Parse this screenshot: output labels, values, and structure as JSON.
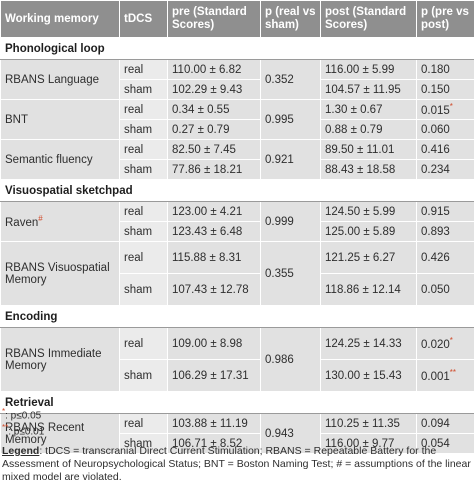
{
  "header": [
    "Working memory",
    "tDCS",
    "pre (Standard Scores)",
    "p (real vs sham)",
    "post (Standard Scores)",
    "p (pre vs post)"
  ],
  "sections": [
    {
      "title": "Phonological loop",
      "measures": [
        {
          "name": "RBANS Language",
          "mark": "",
          "p_real_sham": "0.352",
          "rows": [
            {
              "tdcs": "real",
              "pre": "110.00 ± 6.82",
              "post": "116.00 ± 5.99",
              "p_pre_post": "0.180",
              "p_mark": ""
            },
            {
              "tdcs": "sham",
              "pre": "102.29 ± 9.43",
              "post": "104.57 ± 11.95",
              "p_pre_post": "0.150",
              "p_mark": ""
            }
          ]
        },
        {
          "name": "BNT",
          "mark": "",
          "p_real_sham": "0.995",
          "rows": [
            {
              "tdcs": "real",
              "pre": "0.34 ± 0.55",
              "post": "1.30 ± 0.67",
              "p_pre_post": "0.015",
              "p_mark": "*"
            },
            {
              "tdcs": "sham",
              "pre": "0.27 ± 0.79",
              "post": "0.88 ± 0.79",
              "p_pre_post": "0.060",
              "p_mark": ""
            }
          ]
        },
        {
          "name": "Semantic fluency",
          "mark": "",
          "p_real_sham": "0.921",
          "rows": [
            {
              "tdcs": "real",
              "pre": "82.50 ± 7.45",
              "post": "89.50 ± 11.01",
              "p_pre_post": "0.416",
              "p_mark": ""
            },
            {
              "tdcs": "sham",
              "pre": "77.86 ± 18.21",
              "post": "88.43 ± 18.58",
              "p_pre_post": "0.234",
              "p_mark": ""
            }
          ]
        }
      ]
    },
    {
      "title": "Visuospatial sketchpad",
      "measures": [
        {
          "name": "Raven",
          "mark": "#",
          "p_real_sham": "0.999",
          "rows": [
            {
              "tdcs": "real",
              "pre": "123.00 ± 4.21",
              "post": "124.50 ± 5.99",
              "p_pre_post": "0.915",
              "p_mark": ""
            },
            {
              "tdcs": "sham",
              "pre": "123.43 ± 6.48",
              "post": "125.00 ± 5.89",
              "p_pre_post": "0.893",
              "p_mark": ""
            }
          ]
        },
        {
          "name": "RBANS Visuospatial Memory",
          "mark": "",
          "p_real_sham": "0.355",
          "rows": [
            {
              "tdcs": "real",
              "pre": "115.88 ± 8.31",
              "post": "121.25 ± 6.27",
              "p_pre_post": "0.426",
              "p_mark": ""
            },
            {
              "tdcs": "sham",
              "pre": "107.43 ± 12.78",
              "post": "118.86 ± 12.14",
              "p_pre_post": "0.050",
              "p_mark": ""
            }
          ]
        }
      ]
    },
    {
      "title": "Encoding",
      "measures": [
        {
          "name": "RBANS Immediate Memory",
          "mark": "",
          "p_real_sham": "0.986",
          "rows": [
            {
              "tdcs": "real",
              "pre": "109.00 ± 8.98",
              "post": "124.25 ± 14.33",
              "p_pre_post": "0.020",
              "p_mark": "*"
            },
            {
              "tdcs": "sham",
              "pre": "106.29 ± 17.31",
              "post": "130.00 ± 15.43",
              "p_pre_post": "0.001",
              "p_mark": "**"
            }
          ]
        }
      ]
    },
    {
      "title": "Retrieval",
      "measures": [
        {
          "name": "RBANS Recent Memory",
          "mark": "",
          "p_real_sham": "0.943",
          "rows": [
            {
              "tdcs": "real",
              "pre": "103.88 ± 11.19",
              "post": "110.25 ± 11.35",
              "p_pre_post": "0.094",
              "p_mark": ""
            },
            {
              "tdcs": "sham",
              "pre": "106.71 ± 8.52",
              "post": "116.00 ± 9.77",
              "p_pre_post": "0.054",
              "p_mark": ""
            }
          ]
        }
      ]
    }
  ],
  "footnotes": [
    {
      "mark": "*",
      "text": ": p≤0.05"
    },
    {
      "mark": "**",
      "text": ": p≤0.01"
    }
  ],
  "legend": {
    "label": "Legend",
    "text": ": tDCS = transcranial Direct Current Stimulation; RBANS = Repeatable Battery for the Assessment of Neuropsychological Status; BNT = Boston Naming Test; # = assumptions of the linear mixed model are violated."
  }
}
